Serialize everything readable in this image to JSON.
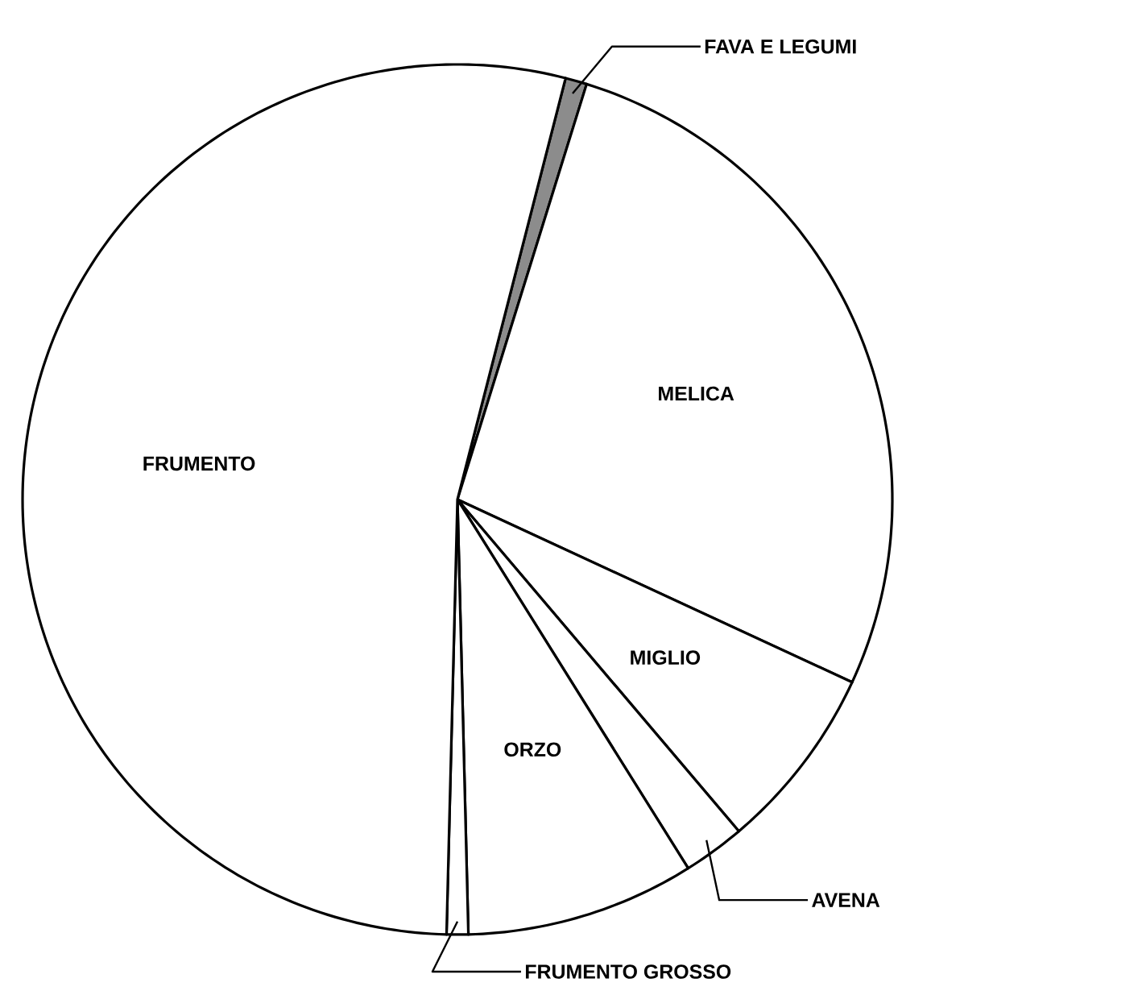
{
  "chart_data": {
    "type": "pie",
    "categories": [
      "FAVA E LEGUMI",
      "MELICA",
      "MIGLIO",
      "AVENA",
      "ORZO",
      "FRUMENTO GROSSO",
      "FRUMENTO"
    ],
    "values": [
      0.8,
      27.1,
      6.9,
      2.3,
      8.5,
      0.8,
      53.6
    ],
    "colors": [
      "#8c8c8c",
      "#ffffff",
      "#ffffff",
      "#ffffff",
      "#ffffff",
      "#ffffff",
      "#ffffff"
    ]
  }
}
